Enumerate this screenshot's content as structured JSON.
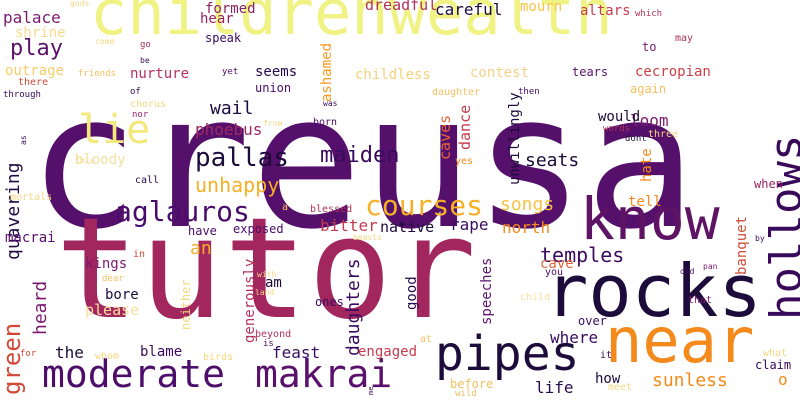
{
  "words": [
    {
      "text": "creusa",
      "color": "#55106b"
    },
    {
      "text": "tutor",
      "color": "#a2275f"
    },
    {
      "text": "childrenwealth",
      "color": "#f0f383"
    },
    {
      "text": "rocks",
      "color": "#1c0b3b"
    },
    {
      "text": "near",
      "color": "#f38a1b"
    },
    {
      "text": "hollows",
      "color": "#3a0a5a"
    },
    {
      "text": "know",
      "color": "#5f1365"
    },
    {
      "text": "pipes",
      "color": "#1c0b3b"
    },
    {
      "text": "moderate",
      "color": "#4d0d6a"
    },
    {
      "text": "makrai",
      "color": "#5a106d"
    },
    {
      "text": "lie",
      "color": "#f3e87a"
    },
    {
      "text": "aglauros",
      "color": "#4a0c6b"
    },
    {
      "text": "courses",
      "color": "#f5b025"
    },
    {
      "text": "green",
      "color": "#d04a36"
    },
    {
      "text": "pallas",
      "color": "#1c0b3b"
    },
    {
      "text": "maiden",
      "color": "#3a0b5e"
    },
    {
      "text": "play",
      "color": "#5a1167"
    },
    {
      "text": "palace",
      "color": "#7a1a6e"
    },
    {
      "text": "formed",
      "color": "#8c2365"
    },
    {
      "text": "hear",
      "color": "#9a2463"
    },
    {
      "text": "careful",
      "color": "#1c0b3b"
    },
    {
      "text": "dreadful",
      "color": "#b0325a"
    },
    {
      "text": "mourn",
      "color": "#f7c343"
    },
    {
      "text": "altars",
      "color": "#c43c4e"
    },
    {
      "text": "speak",
      "color": "#3a0b5e"
    },
    {
      "text": "shrine",
      "color": "#f9d98d"
    },
    {
      "text": "outrage",
      "color": "#f8cd6a"
    },
    {
      "text": "nurture",
      "color": "#b4325c"
    },
    {
      "text": "seems",
      "color": "#2a0a4c"
    },
    {
      "text": "ashamed",
      "color": "#f89a1d"
    },
    {
      "text": "childless",
      "color": "#f3d27b"
    },
    {
      "text": "contest",
      "color": "#f7d08a"
    },
    {
      "text": "tears",
      "color": "#5a106d"
    },
    {
      "text": "cecropian",
      "color": "#cc3f47"
    },
    {
      "text": "union",
      "color": "#4b0c6b"
    },
    {
      "text": "wail",
      "color": "#200b44"
    },
    {
      "text": "phoebus",
      "color": "#9e2a63"
    },
    {
      "text": "caves",
      "color": "#e4643a"
    },
    {
      "text": "dance",
      "color": "#c43c4e"
    },
    {
      "text": "loom",
      "color": "#7a1a6e"
    },
    {
      "text": "would",
      "color": "#1c0b3b"
    },
    {
      "text": "quavering",
      "color": "#200b44"
    },
    {
      "text": "bloody",
      "color": "#f5e0a0"
    },
    {
      "text": "unhappy",
      "color": "#f5b025"
    },
    {
      "text": "seats",
      "color": "#1c0b3b"
    },
    {
      "text": "unwillingly",
      "color": "#1c0b3b"
    },
    {
      "text": "tell",
      "color": "#f38a1b"
    },
    {
      "text": "songs",
      "color": "#f7c343"
    },
    {
      "text": "bitter",
      "color": "#c43c4e"
    },
    {
      "text": "native",
      "color": "#1c0b3b"
    },
    {
      "text": "rape",
      "color": "#3a0b5e"
    },
    {
      "text": "north",
      "color": "#f38a1b"
    },
    {
      "text": "temples",
      "color": "#3a0b5e"
    },
    {
      "text": "banquet",
      "color": "#d04a36"
    },
    {
      "text": "kings",
      "color": "#7a1a6e"
    },
    {
      "text": "an",
      "color": "#f5b025"
    },
    {
      "text": "heard",
      "color": "#7a1a6e"
    },
    {
      "text": "bore",
      "color": "#1c0b3b"
    },
    {
      "text": "please",
      "color": "#f9e0a0"
    },
    {
      "text": "daughters",
      "color": "#3a0b5e"
    },
    {
      "text": "good",
      "color": "#2a0a4c"
    },
    {
      "text": "speeches",
      "color": "#5a106d"
    },
    {
      "text": "cave",
      "color": "#e4643a"
    },
    {
      "text": "where",
      "color": "#3a0b5e"
    },
    {
      "text": "the",
      "color": "#1c0b3b"
    },
    {
      "text": "blame",
      "color": "#3a0b5e"
    },
    {
      "text": "feast",
      "color": "#3a0b5e"
    },
    {
      "text": "engaged",
      "color": "#c43c4e"
    },
    {
      "text": "generously",
      "color": "#b0325a"
    },
    {
      "text": "ones",
      "color": "#3a0b5e"
    },
    {
      "text": "sunless",
      "color": "#f38a1b"
    },
    {
      "text": "how",
      "color": "#1c0b3b"
    },
    {
      "text": "life",
      "color": "#2a0a4c"
    },
    {
      "text": "macrai",
      "color": "#5a106d"
    },
    {
      "text": "neither",
      "color": "#f5d780"
    },
    {
      "text": "mortals",
      "color": "#f5d780"
    },
    {
      "text": "exposed",
      "color": "#4a0c6b"
    },
    {
      "text": "have",
      "color": "#4a0c6b"
    },
    {
      "text": "blessed",
      "color": "#b0325a"
    },
    {
      "text": "hate",
      "color": "#f38a1b"
    },
    {
      "text": "call",
      "color": "#2a0a4c"
    },
    {
      "text": "gods",
      "color": "#f5d780"
    },
    {
      "text": "come",
      "color": "#f5d780"
    },
    {
      "text": "go",
      "color": "#b0325a"
    },
    {
      "text": "be",
      "color": "#3a0b5e"
    },
    {
      "text": "friends",
      "color": "#f5c060"
    },
    {
      "text": "yet",
      "color": "#4a0c6b"
    },
    {
      "text": "there",
      "color": "#d04a36"
    },
    {
      "text": "through",
      "color": "#3a0b5e"
    },
    {
      "text": "chorus",
      "color": "#f5d780"
    },
    {
      "text": "nor",
      "color": "#9a2463"
    },
    {
      "text": "of",
      "color": "#3a0b5e"
    },
    {
      "text": "was",
      "color": "#3a0b5e"
    },
    {
      "text": "born",
      "color": "#4a0c6b"
    },
    {
      "text": "yes",
      "color": "#f38a1b"
    },
    {
      "text": "daughter",
      "color": "#f5c060"
    },
    {
      "text": "then",
      "color": "#4a0c6b"
    },
    {
      "text": "again",
      "color": "#f5c060"
    },
    {
      "text": "to",
      "color": "#7a1a6e"
    },
    {
      "text": "may",
      "color": "#b0325a"
    },
    {
      "text": "which",
      "color": "#b0325a"
    },
    {
      "text": "words",
      "color": "#b0325a"
    },
    {
      "text": "three",
      "color": "#f5d780"
    },
    {
      "text": "dont",
      "color": "#1c0b3b"
    },
    {
      "text": "when",
      "color": "#9a2463"
    },
    {
      "text": "claim",
      "color": "#3a0b5e"
    },
    {
      "text": "what",
      "color": "#f5d780"
    },
    {
      "text": "o",
      "color": "#f38a1b"
    },
    {
      "text": "meet",
      "color": "#f5d780"
    },
    {
      "text": "before",
      "color": "#f5c060"
    },
    {
      "text": "wild",
      "color": "#f5c060"
    },
    {
      "text": "it",
      "color": "#3a0b5e"
    },
    {
      "text": "over",
      "color": "#3a0b5e"
    },
    {
      "text": "child",
      "color": "#f9e0a0"
    },
    {
      "text": "you",
      "color": "#4a0c6b"
    },
    {
      "text": "that",
      "color": "#7a1a6e"
    },
    {
      "text": "old",
      "color": "#3a0b5e"
    },
    {
      "text": "pan",
      "color": "#7a1a6e"
    },
    {
      "text": "beyond",
      "color": "#b0325a"
    },
    {
      "text": "is",
      "color": "#4a0c6b"
    },
    {
      "text": "birds",
      "color": "#f5d780"
    },
    {
      "text": "for",
      "color": "#d04a36"
    },
    {
      "text": "whom",
      "color": "#f5d780"
    },
    {
      "text": "at",
      "color": "#f5c060"
    },
    {
      "text": "me",
      "color": "#3a0b5e"
    },
    {
      "text": "am",
      "color": "#1c0b3b"
    },
    {
      "text": "land",
      "color": "#f5d780"
    },
    {
      "text": "with",
      "color": "#f5d780"
    },
    {
      "text": "in",
      "color": "#d04a36"
    },
    {
      "text": "dear",
      "color": "#f5c060"
    },
    {
      "text": "beasts",
      "color": "#f5d780"
    },
    {
      "text": "by",
      "color": "#3a0b5e"
    },
    {
      "text": "from",
      "color": "#f5d780"
    },
    {
      "text": "this",
      "color": "#f5d780"
    },
    {
      "text": "as",
      "color": "#3a0b5e"
    },
    {
      "text": "a",
      "color": "#f5c060"
    }
  ]
}
